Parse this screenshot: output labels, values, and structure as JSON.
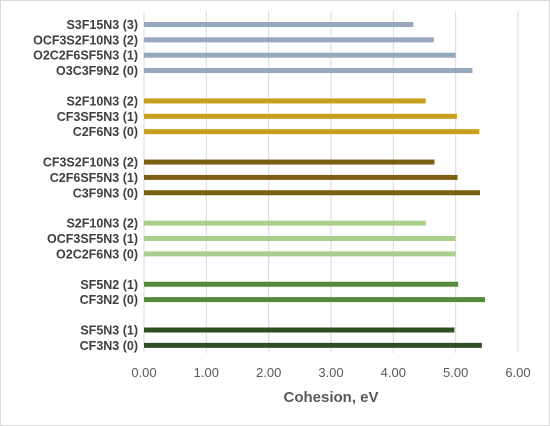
{
  "chart_data": {
    "type": "bar",
    "orientation": "horizontal",
    "xlabel": "Cohesion, eV",
    "ylabel": "",
    "xlim": [
      0,
      6
    ],
    "xticks": [
      "0.00",
      "1.00",
      "2.00",
      "3.00",
      "4.00",
      "5.00",
      "6.00"
    ],
    "grid": true,
    "groups": [
      {
        "color": "#97a8bd",
        "bars": [
          {
            "label": "S3F15N3 (3)",
            "value": 4.32
          },
          {
            "label": "OCF3S2F10N3 (2)",
            "value": 4.65
          },
          {
            "label": "O2C2F6SF5N3 (1)",
            "value": 5.0
          },
          {
            "label": "O3C3F9N2 (0)",
            "value": 5.27
          }
        ]
      },
      {
        "color": "#c7a01b",
        "bars": [
          {
            "label": "S2F10N3 (2)",
            "value": 4.52
          },
          {
            "label": "CF3SF5N3 (1)",
            "value": 5.02
          },
          {
            "label": "C2F6N3 (0)",
            "value": 5.38
          }
        ]
      },
      {
        "color": "#7d5f14",
        "bars": [
          {
            "label": "CF3S2F10N3 (2)",
            "value": 4.66
          },
          {
            "label": "C2F6SF5N3 (1)",
            "value": 5.03
          },
          {
            "label": "C3F9N3 (0)",
            "value": 5.39
          }
        ]
      },
      {
        "color": "#a9cf8d",
        "bars": [
          {
            "label": "S2F10N3 (2)",
            "value": 4.52
          },
          {
            "label": "OCF3SF5N3 (1)",
            "value": 5.0
          },
          {
            "label": "O2C2F6N3 (0)",
            "value": 5.0
          }
        ]
      },
      {
        "color": "#558a3c",
        "bars": [
          {
            "label": "SF5N2 (1)",
            "value": 5.04
          },
          {
            "label": "CF3N2 (0)",
            "value": 5.47
          }
        ]
      },
      {
        "color": "#2f4f22",
        "bars": [
          {
            "label": "SF5N3 (1)",
            "value": 4.98
          },
          {
            "label": "CF3N3 (0)",
            "value": 5.42
          }
        ]
      }
    ]
  }
}
